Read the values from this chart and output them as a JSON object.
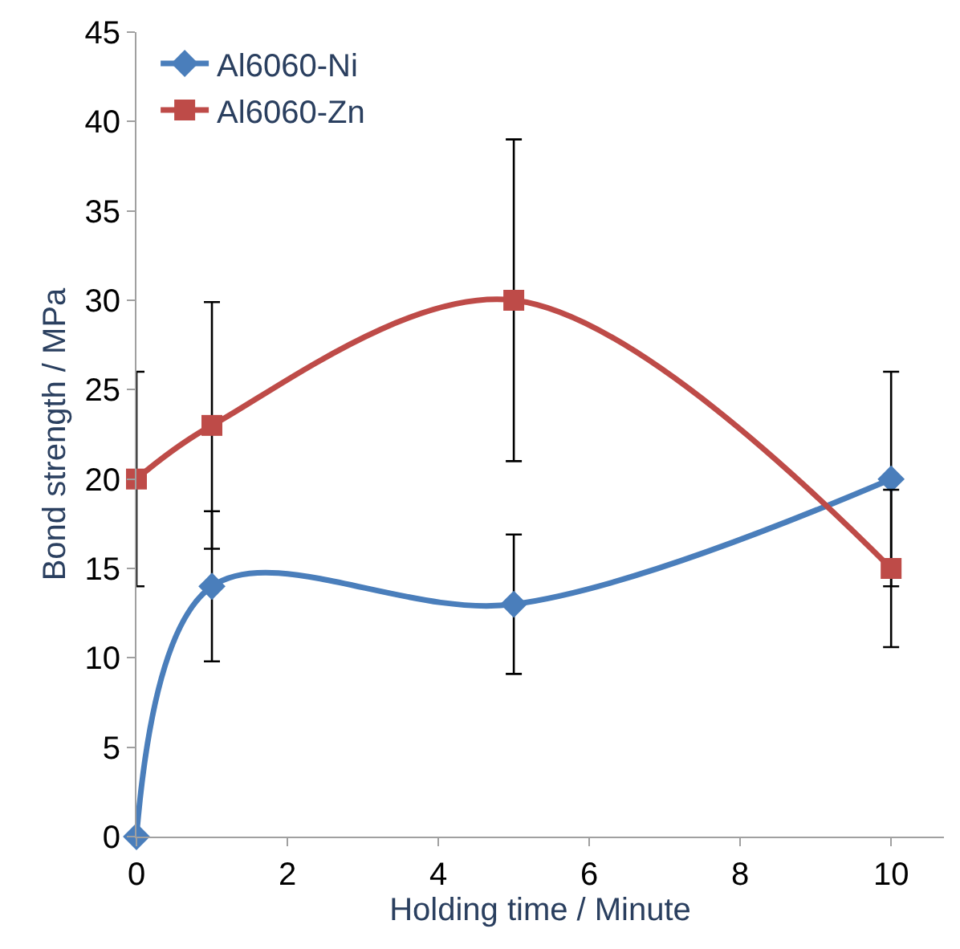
{
  "chart_data": {
    "type": "line",
    "xlabel": "Holding time / Minute",
    "ylabel": "Bond strength / MPa",
    "x": [
      0,
      1,
      5,
      10
    ],
    "series": [
      {
        "name": "Al6060-Ni",
        "color": "#4a7ebb",
        "marker": "diamond",
        "values": [
          0,
          14,
          13,
          20
        ],
        "errors": [
          null,
          4.2,
          3.9,
          6
        ]
      },
      {
        "name": "Al6060-Zn",
        "color": "#be4b48",
        "marker": "square",
        "values": [
          20,
          23,
          30,
          15
        ],
        "errors": [
          6,
          6.9,
          9,
          4.4
        ]
      }
    ],
    "xlim": [
      0,
      10.7
    ],
    "xticks": [
      0,
      2,
      4,
      6,
      8,
      10
    ],
    "ylim": [
      0,
      45
    ],
    "yticks": [
      0,
      5,
      10,
      15,
      20,
      25,
      30,
      35,
      40,
      45
    ],
    "legend": "top left",
    "line_style": "solid"
  }
}
